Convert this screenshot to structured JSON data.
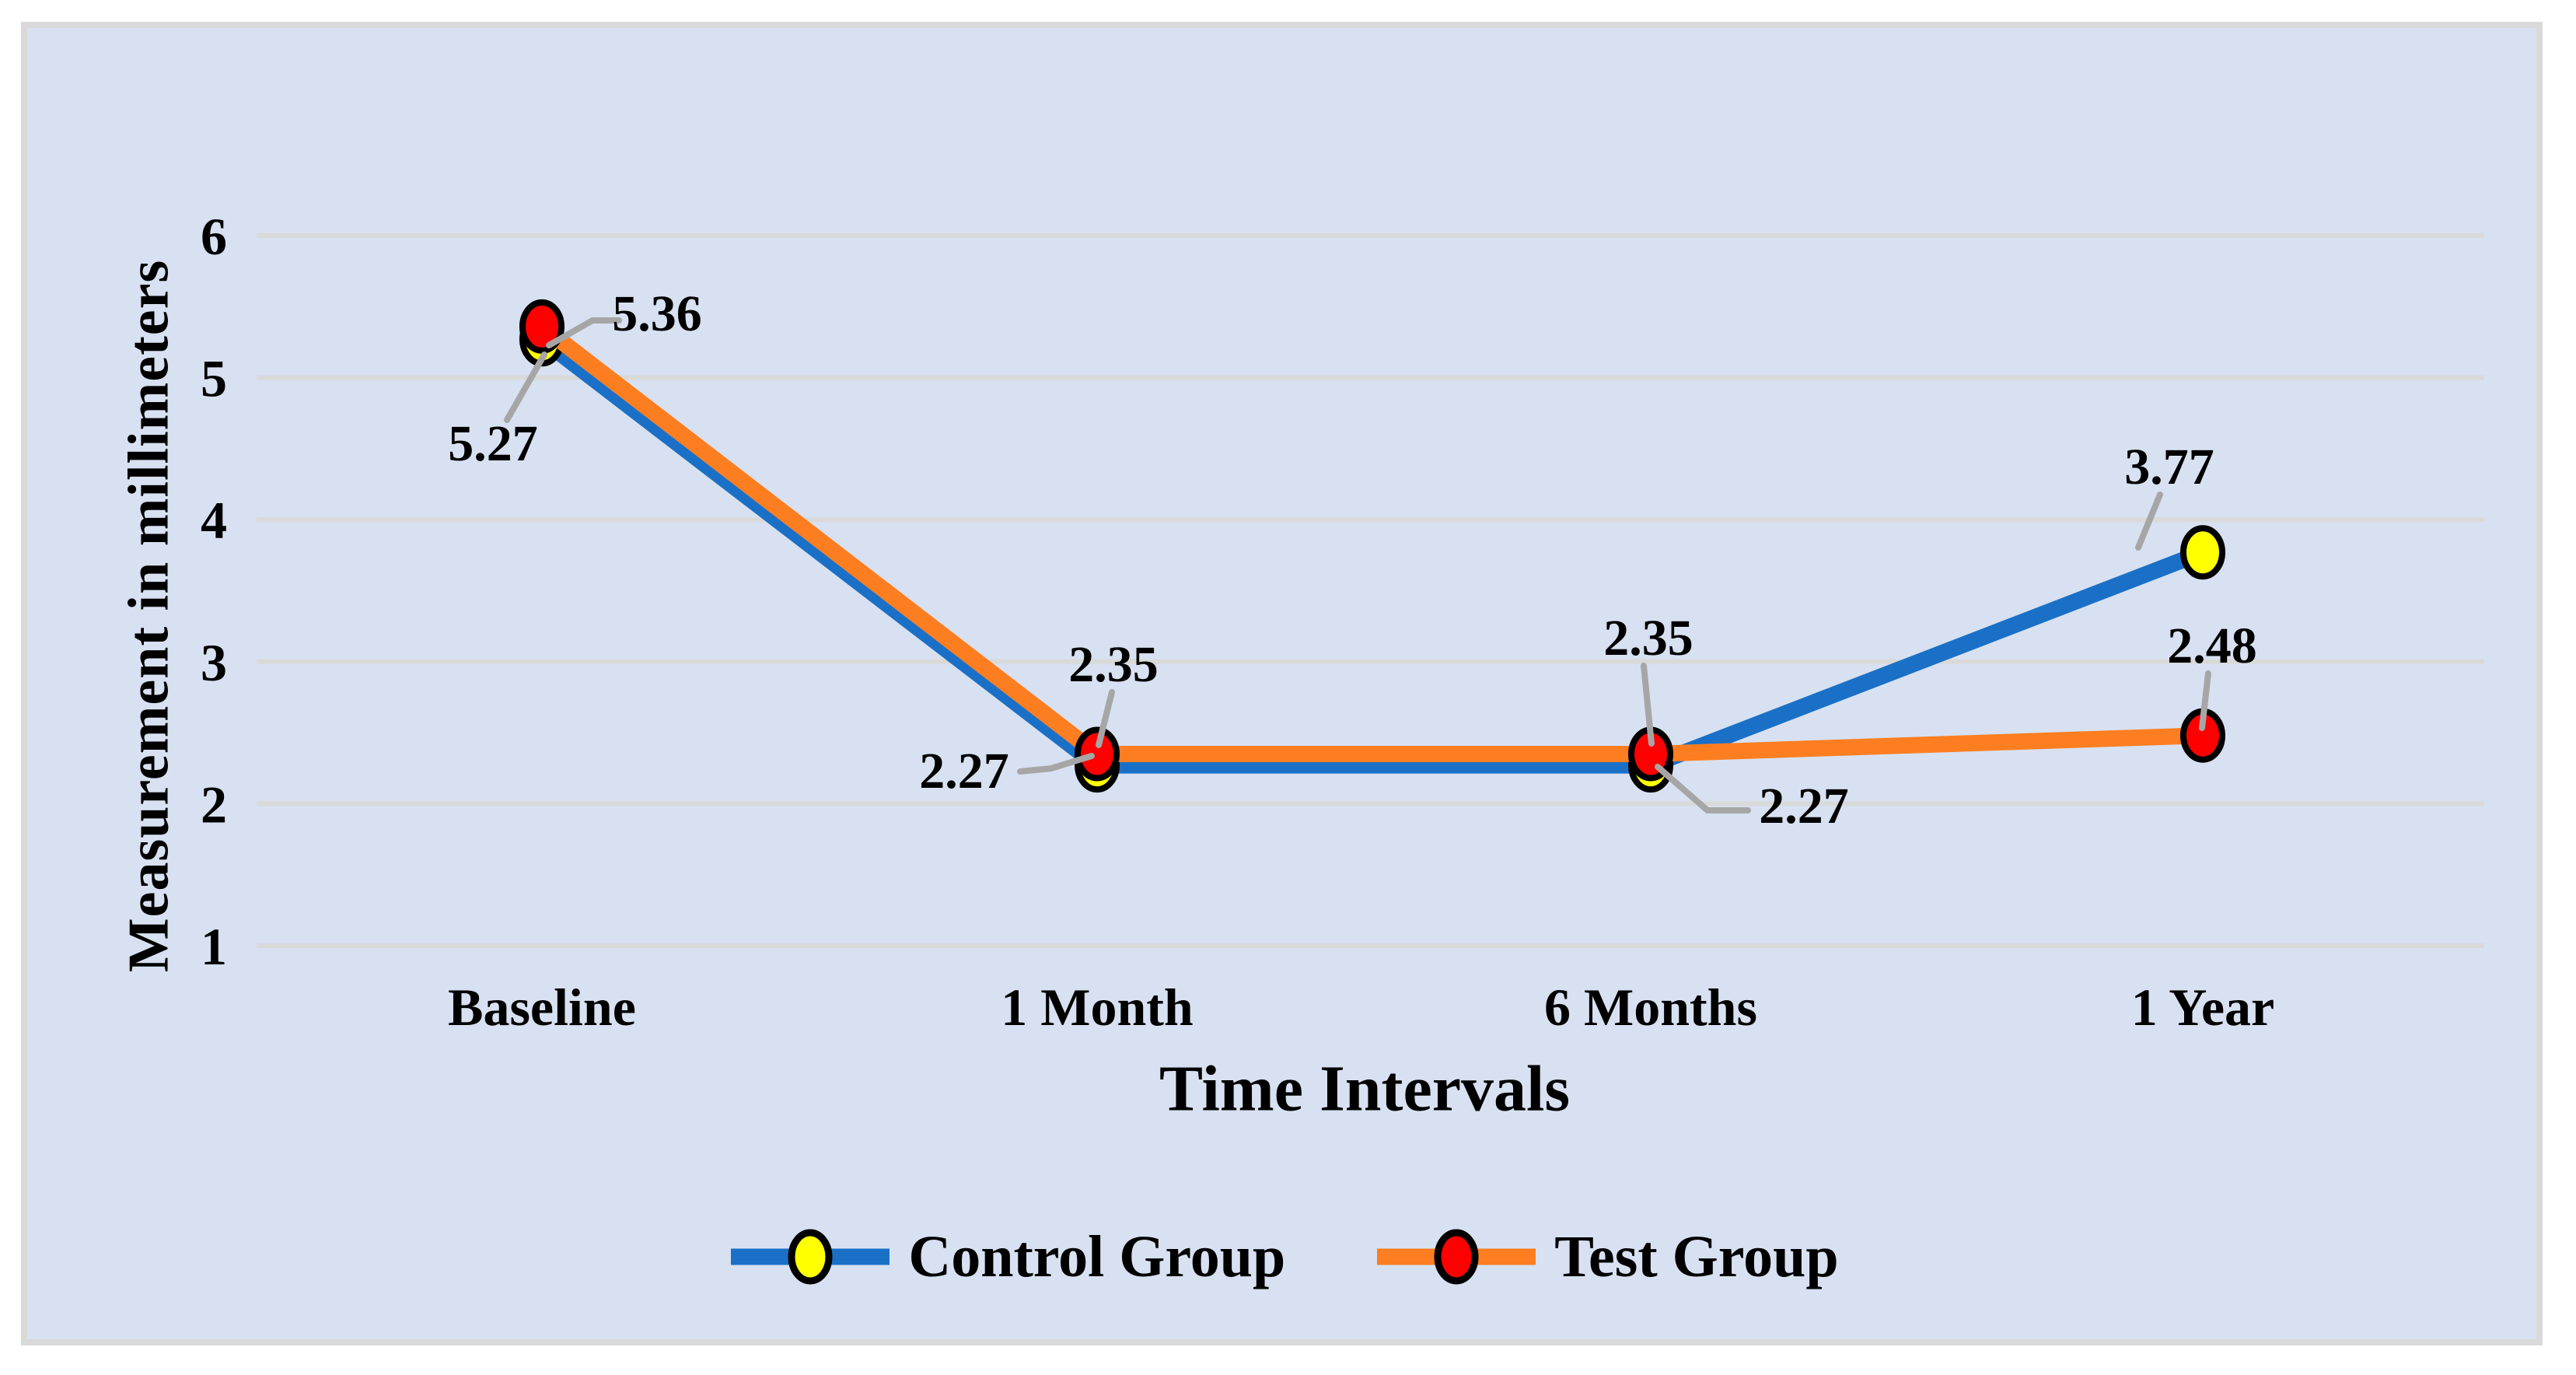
{
  "chart_data": {
    "type": "line",
    "categories": [
      "Baseline",
      "1 Month",
      "6 Months",
      "1 Year"
    ],
    "series": [
      {
        "name": "Control Group",
        "values": [
          5.27,
          2.27,
          2.27,
          3.77
        ],
        "labels": [
          "5.27",
          "2.27",
          "2.27",
          "3.77"
        ],
        "line_color": "#1a70c7",
        "marker_color": "#ffff00",
        "marker_outline": "#000000"
      },
      {
        "name": "Test Group",
        "values": [
          5.36,
          2.35,
          2.35,
          2.48
        ],
        "labels": [
          "5.36",
          "2.35",
          "2.35",
          "2.48"
        ],
        "line_color": "#fc7e20",
        "marker_color": "#fe0000",
        "marker_outline": "#000000"
      }
    ],
    "xlabel": "Time Intervals",
    "ylabel": "Measurement in millimeters",
    "y_ticks": [
      1,
      2,
      3,
      4,
      5,
      6
    ],
    "ylim": [
      1,
      6
    ],
    "grid": true,
    "legend_position": "bottom",
    "colors": {
      "page": "#ffffff",
      "background": "#d8e1f1",
      "frame_border": "#d9d9d9",
      "gridline": "#d9d9d9",
      "leader_line": "#a6a6a6",
      "text": "#000000"
    }
  }
}
